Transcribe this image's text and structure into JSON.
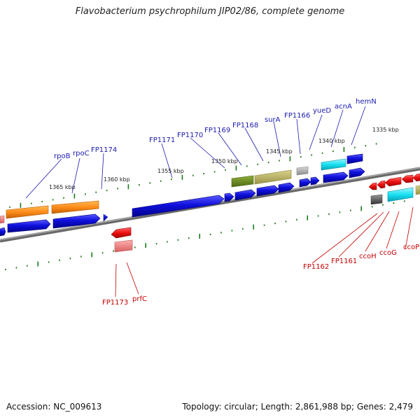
{
  "title": "Flavobacterium psychrophilum JIP02/86, complete genome",
  "footer": {
    "accession": "Accession: NC_009613",
    "summary": "Topology: circular; Length: 2,861,988 bp; Genes: 2,479"
  },
  "scale_labels": [
    "1335 kbp",
    "1340 kbp",
    "1345 kbp",
    "1350 kbp",
    "1355 kbp",
    "1360 kbp",
    "1365 kbp"
  ],
  "gene_labels_top": [
    "hemN",
    "acnA",
    "yueD",
    "FP1166",
    "surA",
    "FP1168",
    "FP1169",
    "FP1170",
    "FP1171",
    "FP1174",
    "rpoC",
    "rpoB"
  ],
  "gene_labels_bottom": [
    "ccoP",
    "ccoG",
    "ccoH",
    "FP1161",
    "FP1162",
    "prfC",
    "FP1173"
  ],
  "colors": {
    "cds": "#1010dd",
    "rna": "#ff8c1a",
    "olive": "#6f8a26",
    "khaki": "#bdb66a",
    "cyan": "#18e0f2",
    "red": "#ee1111",
    "backbone": "#888888",
    "tick": "#1a7a1a"
  }
}
